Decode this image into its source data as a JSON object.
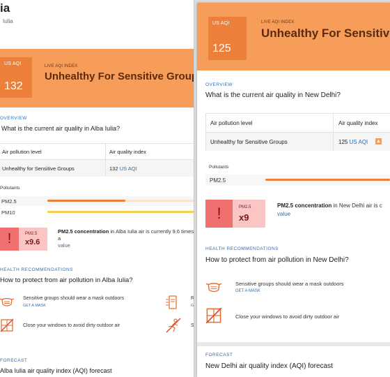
{
  "left": {
    "title_fragment": "ia",
    "subtitle_fragment": "Iulia",
    "aqi_label": "US AQI",
    "aqi_value": "132",
    "live_label": "LIVE AQI INDEX",
    "level": "Unhealthy For Sensitive Groups",
    "overview_label": "OVERVIEW",
    "overview_question": "What is the current air quality in Alba Iulia?",
    "table": {
      "col1": "Air pollution level",
      "col2": "Air quality index",
      "level": "Unhealthy for Sensitive Groups",
      "aqi_num": "132",
      "aqi_unit": "US AQI"
    },
    "pollutants_label": "Pollutants",
    "pollutants": [
      {
        "name": "PM2.5",
        "fill": 0.53,
        "color": "#ec7f3a"
      },
      {
        "name": "PM10",
        "fill": 1.0,
        "color": "#f3d04f"
      }
    ],
    "concentration": {
      "pm": "PM2.5",
      "multiplier": "x9.6",
      "text_bold": "PM2.5 concentration",
      "text_rest": " in Alba Iulia air is currently 9.6 times a",
      "text_link": "value"
    },
    "health_label": "HEALTH RECOMMENDATIONS",
    "health_question": "How to protect from air pollution in Alba Iulia?",
    "recs": [
      {
        "text": "Sensitive groups should wear a mask outdoors",
        "link": "GET A MASK",
        "icon": "mask-icon"
      },
      {
        "text": "Close your windows to avoid dirty outdoor air",
        "link": "",
        "icon": "window-closed-icon"
      }
    ],
    "recs_right": [
      {
        "text": "R",
        "link": "G",
        "icon": "air-purifier-icon"
      },
      {
        "text": "S",
        "link": "",
        "icon": "no-exercise-icon"
      }
    ],
    "forecast_label": "FORECAST",
    "forecast_question": "Alba Iulia air quality index (AQI) forecast"
  },
  "right": {
    "aqi_label": "US AQI",
    "aqi_value": "125",
    "live_label": "LIVE AQI INDEX",
    "level": "Unhealthy For Sensitive Groups",
    "overview_label": "OVERVIEW",
    "overview_question": "What is the current air quality in New Delhi?",
    "table": {
      "col1": "Air pollution level",
      "col2": "Air quality index",
      "level": "Unhealthy for Sensitive Groups",
      "aqi_num": "125",
      "aqi_unit": "US AQI",
      "trend": "▲"
    },
    "pollutants_label": "Pollutants",
    "pollutants": [
      {
        "name": "PM2.5",
        "fill": 1.0,
        "color": "#ec7f3a"
      }
    ],
    "concentration": {
      "pm": "PM2.5",
      "multiplier": "x9",
      "text_bold": "PM2.5 concentration",
      "text_rest": " in New Delhi air is c",
      "text_link": "value"
    },
    "health_label": "HEALTH RECOMMENDATIONS",
    "health_question": "How to protect from air pollution in New Delhi?",
    "recs": [
      {
        "text": "Sensitive groups should wear a mask outdoors",
        "link": "GET A MASK",
        "icon": "mask-icon"
      },
      {
        "text": "Close your windows to avoid dirty outdoor air",
        "link": "",
        "icon": "window-closed-icon"
      }
    ],
    "forecast_label": "FORECAST",
    "forecast_question": "New Delhi air quality index (AQI) forecast"
  }
}
